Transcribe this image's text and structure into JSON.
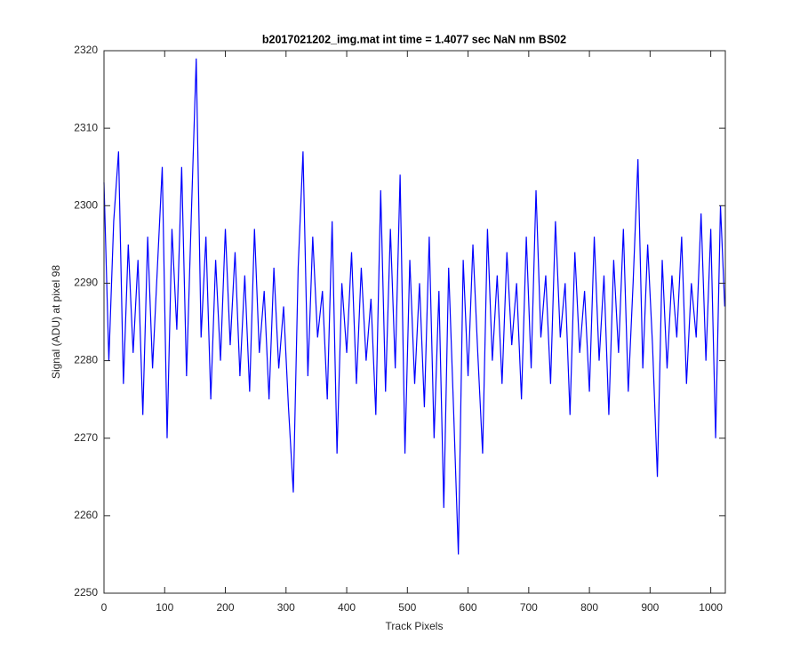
{
  "chart_data": {
    "type": "line",
    "title": "b2017021202_img.mat int time = 1.4077 sec  NaN nm BS02",
    "x_label": "Track Pixels",
    "y_label": "Signal (ADU) at pixel 98",
    "x": [
      0,
      8,
      16,
      24,
      32,
      40,
      48,
      56,
      64,
      72,
      80,
      88,
      96,
      104,
      112,
      120,
      128,
      136,
      144,
      152,
      160,
      168,
      176,
      184,
      192,
      200,
      208,
      216,
      224,
      232,
      240,
      248,
      256,
      264,
      272,
      280,
      288,
      296,
      304,
      312,
      320,
      328,
      336,
      344,
      352,
      360,
      368,
      376,
      384,
      392,
      400,
      408,
      416,
      424,
      432,
      440,
      448,
      456,
      464,
      472,
      480,
      488,
      496,
      504,
      512,
      520,
      528,
      536,
      544,
      552,
      560,
      568,
      576,
      584,
      592,
      600,
      608,
      616,
      624,
      632,
      640,
      648,
      656,
      664,
      672,
      680,
      688,
      696,
      704,
      712,
      720,
      728,
      736,
      744,
      752,
      760,
      768,
      776,
      784,
      792,
      800,
      808,
      816,
      824,
      832,
      840,
      848,
      856,
      864,
      872,
      880,
      888,
      896,
      904,
      912,
      920,
      928,
      936,
      944,
      952,
      960,
      968,
      976,
      984,
      992,
      1000,
      1008,
      1016,
      1023
    ],
    "series": [
      {
        "color": "#0000ff",
        "values": [
          2303,
          2280,
          2298,
          2307,
          2277,
          2295,
          2281,
          2293,
          2273,
          2296,
          2279,
          2292,
          2305,
          2270,
          2297,
          2284,
          2305,
          2278,
          2299,
          2319,
          2283,
          2296,
          2275,
          2293,
          2280,
          2297,
          2282,
          2294,
          2278,
          2291,
          2276,
          2297,
          2281,
          2289,
          2275,
          2292,
          2279,
          2287,
          2274,
          2263,
          2292,
          2307,
          2278,
          2296,
          2283,
          2289,
          2275,
          2298,
          2268,
          2290,
          2281,
          2294,
          2277,
          2292,
          2280,
          2288,
          2273,
          2302,
          2276,
          2297,
          2279,
          2304,
          2268,
          2293,
          2277,
          2290,
          2274,
          2296,
          2270,
          2289,
          2261,
          2292,
          2274,
          2255,
          2293,
          2278,
          2295,
          2281,
          2268,
          2297,
          2280,
          2291,
          2277,
          2294,
          2282,
          2290,
          2275,
          2296,
          2279,
          2302,
          2283,
          2291,
          2277,
          2298,
          2283,
          2290,
          2273,
          2294,
          2281,
          2289,
          2276,
          2296,
          2280,
          2291,
          2273,
          2293,
          2281,
          2297,
          2276,
          2290,
          2306,
          2279,
          2295,
          2282,
          2265,
          2293,
          2279,
          2291,
          2283,
          2296,
          2277,
          2290,
          2283,
          2299,
          2280,
          2297,
          2270,
          2300,
          2287
        ]
      }
    ],
    "xlim": [
      0,
      1024
    ],
    "ylim": [
      2250,
      2320
    ],
    "xticks": [
      0,
      100,
      200,
      300,
      400,
      500,
      600,
      700,
      800,
      900,
      1000
    ],
    "yticks": [
      2250,
      2260,
      2270,
      2280,
      2290,
      2300,
      2310,
      2320
    ]
  }
}
